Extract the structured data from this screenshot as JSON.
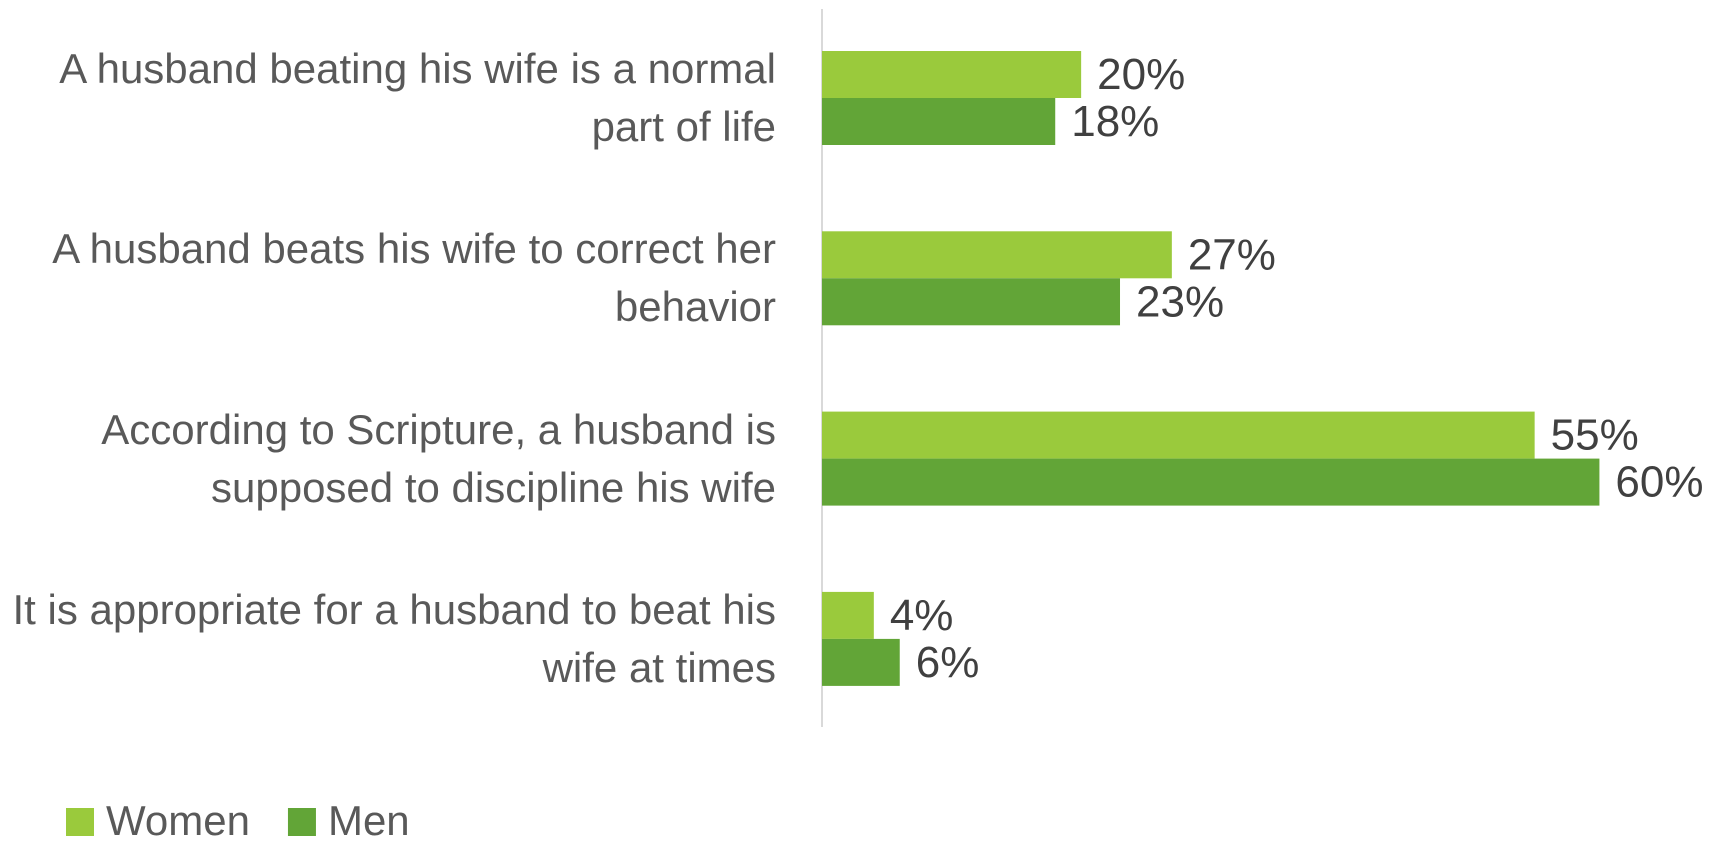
{
  "chart_data": {
    "type": "bar",
    "orientation": "horizontal",
    "categories": [
      "A husband beating his wife is a normal part of life",
      "A husband beats his wife to correct her behavior",
      "According to Scripture, a husband is supposed to discipline his wife",
      "It is appropriate for a husband to beat his wife at times"
    ],
    "series": [
      {
        "name": "Women",
        "color": "#9aca3c",
        "values": [
          20,
          27,
          55,
          4
        ],
        "value_labels": [
          "20%",
          "27%",
          "55%",
          "4%"
        ]
      },
      {
        "name": "Men",
        "color": "#62a537",
        "values": [
          18,
          23,
          60,
          6
        ],
        "value_labels": [
          "18%",
          "23%",
          "60%",
          "6%"
        ]
      }
    ],
    "xlim": [
      0,
      70
    ],
    "legend": "bottom-left"
  }
}
